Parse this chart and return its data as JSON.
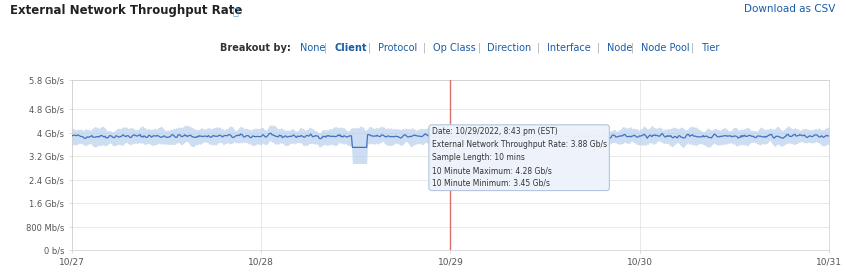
{
  "title": "External Network Throughput Rate",
  "download_link": "Download as CSV",
  "breakout_label": "Breakout by:",
  "breakout_options": [
    "None",
    "Client",
    "Protocol",
    "Op Class",
    "Direction",
    "Interface",
    "Node",
    "Node Pool",
    "Tier"
  ],
  "breakout_active": "Client",
  "x_ticks": [
    "10/27",
    "10/28",
    "10/29",
    "10/30",
    "10/31"
  ],
  "y_ticks": [
    "0 b/s",
    "800 Mb/s",
    "1.6 Gb/s",
    "2.4 Gb/s",
    "3.2 Gb/s",
    "4 Gb/s",
    "4.8 Gb/s",
    "5.8 Gb/s"
  ],
  "y_values": [
    0,
    0.8,
    1.6,
    2.4,
    3.2,
    4.0,
    4.8,
    5.8
  ],
  "mean_value": 3.88,
  "max_value": 4.28,
  "min_value": 3.45,
  "line_color": "#3a6bbf",
  "band_color": "#b8d0ee",
  "vline_color": "#d9706a",
  "vline_x": 2.0,
  "tooltip_date": "Date: 10/29/2022, 8:43 pm (EST)",
  "tooltip_rate": "External Network Throughput Rate: 3.88 Gb/s",
  "tooltip_sample": "Sample Length: 10 mins",
  "tooltip_max": "10 Minute Maximum: 4.28 Gb/s",
  "tooltip_min": "10 Minute Minimum: 3.45 Gb/s",
  "background_color": "#ffffff",
  "plot_bg_color": "#ffffff",
  "grid_color": "#e0e0e0",
  "title_color": "#222222",
  "link_color": "#1a5ca8",
  "separator_color": "#aaaaaa",
  "tooltip_bg": "#eef3fb",
  "tooltip_border": "#b0c4de"
}
